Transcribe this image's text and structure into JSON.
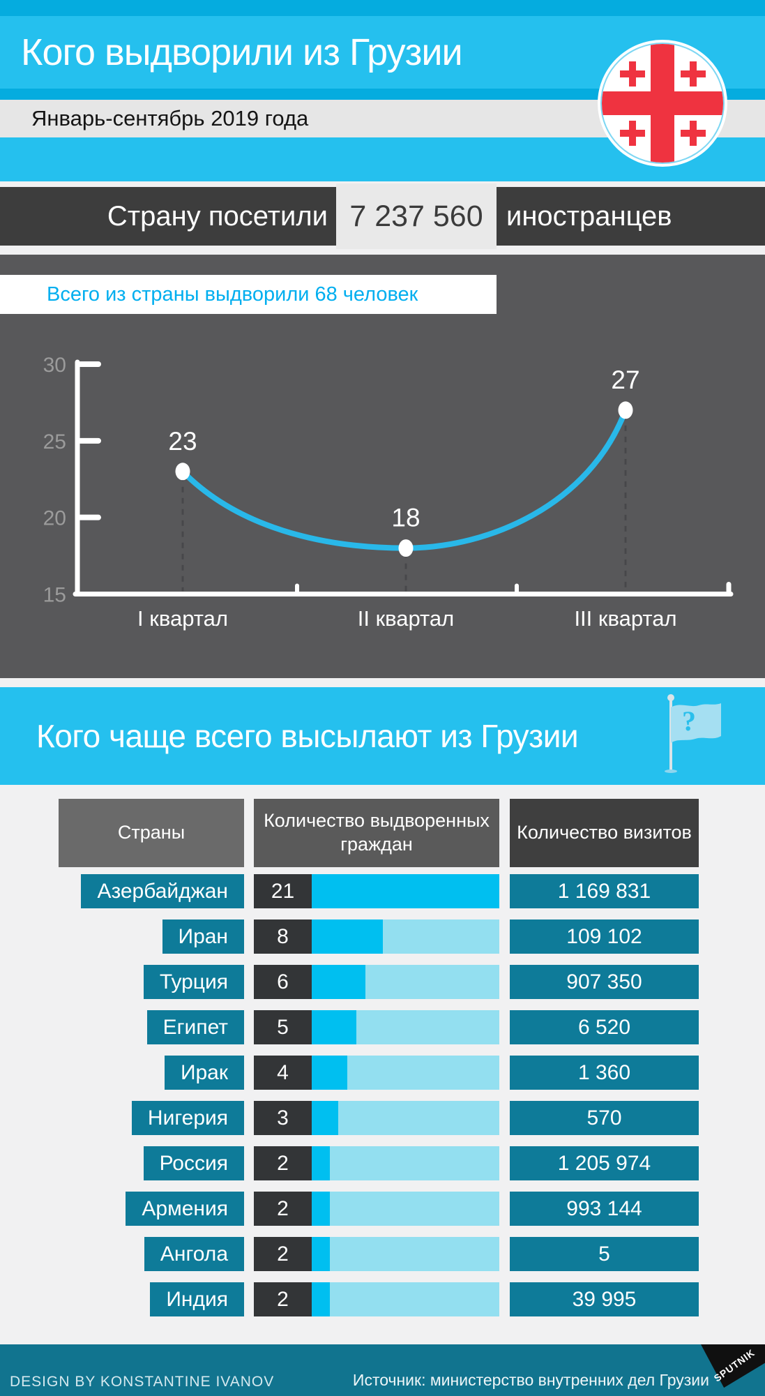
{
  "colors": {
    "cyan_band": "#25c0ee",
    "cyan_strip": "#05acdf",
    "chart_section_bg": "#58585a",
    "dark_banner": "#3d3d3d",
    "teal_box": "#0e7b99",
    "bar_bright": "#00bff0",
    "bar_pale": "#93dff0",
    "flag_red": "#ef3340",
    "callout_text": "#00aeef",
    "footer_bg": "#11748f"
  },
  "header": {
    "title": "Кого выдворили из Грузии",
    "subtitle": "Январь-сентябрь 2019 года"
  },
  "visitors_banner": {
    "label_left": "Страну посетили",
    "value": "7 237 560",
    "label_right": "иностранцев"
  },
  "table_section": {
    "title": "Кого чаще всего высылают из Грузии",
    "question_mark": "?"
  },
  "footer": {
    "credit": "DESIGN BY KONSTANTINE IVANOV",
    "source": "Источник: министерство внутренних дел Грузии",
    "logo_text": "SPUTNIK"
  },
  "chart_data": [
    {
      "type": "line",
      "title": "Всего из страны выдворили 68 человек",
      "categories": [
        "I квартал",
        "II квартал",
        "III квартал"
      ],
      "values": [
        23,
        18,
        27
      ],
      "ylim": [
        15,
        30
      ],
      "yticks": [
        15,
        20,
        25,
        30
      ],
      "grid": false,
      "legend": "none",
      "line_color": "#29b8e9",
      "point_color": "#ffffff",
      "value_labels": [
        "23",
        "18",
        "27"
      ]
    },
    {
      "type": "table",
      "title": "Кого чаще всего высылают из Грузии",
      "columns": [
        "Страны",
        "Количество выдворенных граждан",
        "Количество визитов"
      ],
      "max_expelled": 21,
      "rows": [
        {
          "country": "Азербайджан",
          "expelled": 21,
          "visits": "1 169 831"
        },
        {
          "country": "Иран",
          "expelled": 8,
          "visits": "109 102"
        },
        {
          "country": "Турция",
          "expelled": 6,
          "visits": "907 350"
        },
        {
          "country": "Египет",
          "expelled": 5,
          "visits": "6 520"
        },
        {
          "country": "Ирак",
          "expelled": 4,
          "visits": "1 360"
        },
        {
          "country": "Нигерия",
          "expelled": 3,
          "visits": "570"
        },
        {
          "country": "Россия",
          "expelled": 2,
          "visits": "1 205 974"
        },
        {
          "country": "Армения",
          "expelled": 2,
          "visits": "993 144"
        },
        {
          "country": "Ангола",
          "expelled": 2,
          "visits": "5"
        },
        {
          "country": "Индия",
          "expelled": 2,
          "visits": "39 995"
        }
      ]
    }
  ]
}
